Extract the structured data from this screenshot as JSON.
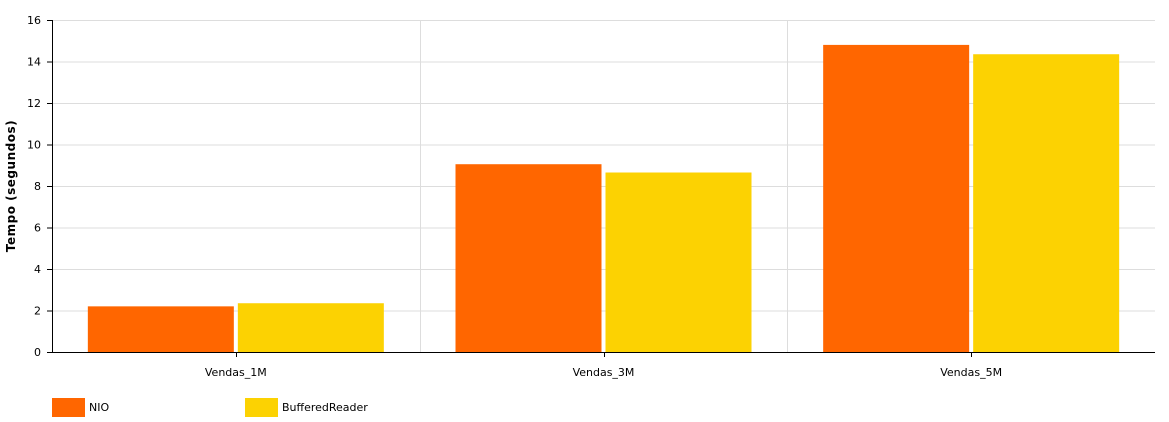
{
  "chart_data": {
    "type": "bar",
    "title": "",
    "xlabel": "",
    "ylabel": "Tempo (segundos)",
    "ylim": [
      0,
      16
    ],
    "yticks": [
      0,
      2,
      4,
      6,
      8,
      10,
      12,
      14,
      16
    ],
    "categories": [
      "Vendas_1M",
      "Vendas_3M",
      "Vendas_5M"
    ],
    "series": [
      {
        "name": "NIO",
        "color": "#ff6600",
        "values": [
          2.2,
          9.05,
          14.8
        ]
      },
      {
        "name": "BufferedReader",
        "color": "#fcd202",
        "values": [
          2.35,
          8.65,
          14.35
        ]
      }
    ],
    "grid": true,
    "legend_position": "bottom-left"
  }
}
